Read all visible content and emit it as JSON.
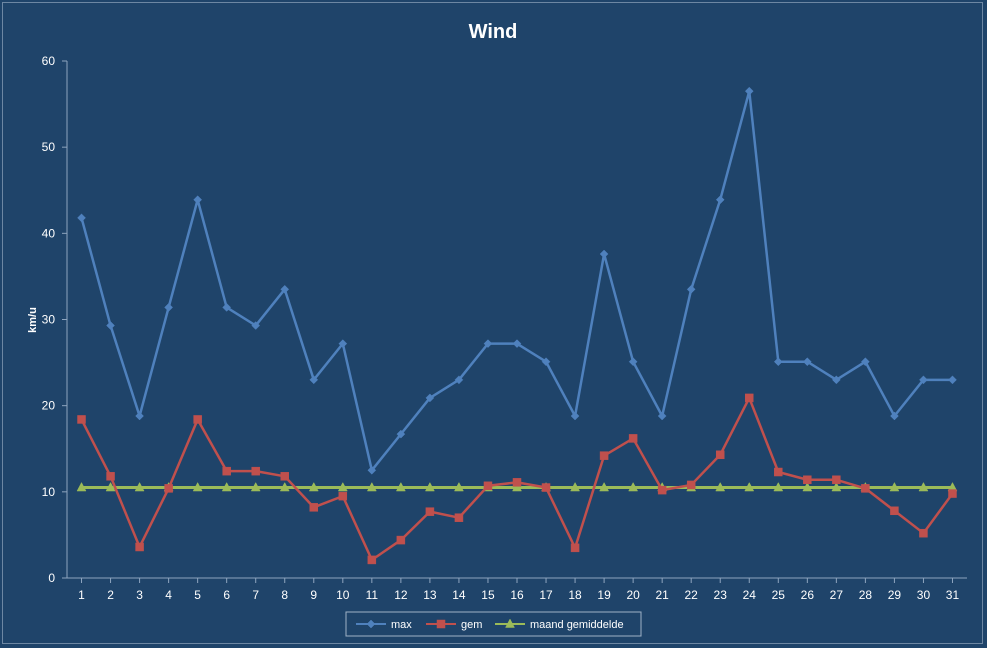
{
  "chart_data": {
    "type": "line",
    "title": "Wind",
    "xlabel": "",
    "ylabel": "km/u",
    "ylim": [
      0,
      60
    ],
    "yticks": [
      "0",
      "10",
      "20",
      "30",
      "40",
      "50",
      "60"
    ],
    "grid": false,
    "legend_position": "bottom",
    "categories": [
      "1",
      "2",
      "3",
      "4",
      "5",
      "6",
      "7",
      "8",
      "9",
      "10",
      "11",
      "12",
      "13",
      "14",
      "15",
      "16",
      "17",
      "18",
      "19",
      "20",
      "21",
      "22",
      "23",
      "24",
      "25",
      "26",
      "27",
      "28",
      "29",
      "30",
      "31"
    ],
    "series": [
      {
        "name": "max",
        "color": "#4f81bd",
        "marker": "diamond",
        "values": [
          41.8,
          29.3,
          18.8,
          31.4,
          43.9,
          31.4,
          29.3,
          33.5,
          23.0,
          27.2,
          12.5,
          16.7,
          20.9,
          23.0,
          27.2,
          27.2,
          25.1,
          18.8,
          37.6,
          25.1,
          18.8,
          33.5,
          43.9,
          56.5,
          25.1,
          25.1,
          23.0,
          25.1,
          18.8,
          23.0,
          23.0
        ]
      },
      {
        "name": "gem",
        "color": "#c0504d",
        "marker": "square",
        "values": [
          18.4,
          11.8,
          3.6,
          10.4,
          18.4,
          12.4,
          12.4,
          11.8,
          8.2,
          9.5,
          2.1,
          4.4,
          7.7,
          7.0,
          10.7,
          11.1,
          10.5,
          3.5,
          14.2,
          16.2,
          10.2,
          10.8,
          14.3,
          20.9,
          12.3,
          11.4,
          11.4,
          10.4,
          7.8,
          5.2,
          9.8
        ]
      },
      {
        "name": "maand gemiddelde",
        "color": "#9bbb59",
        "marker": "triangle",
        "values": [
          10.5,
          10.5,
          10.5,
          10.5,
          10.5,
          10.5,
          10.5,
          10.5,
          10.5,
          10.5,
          10.5,
          10.5,
          10.5,
          10.5,
          10.5,
          10.5,
          10.5,
          10.5,
          10.5,
          10.5,
          10.5,
          10.5,
          10.5,
          10.5,
          10.5,
          10.5,
          10.5,
          10.5,
          10.5,
          10.5,
          10.5
        ]
      }
    ]
  }
}
